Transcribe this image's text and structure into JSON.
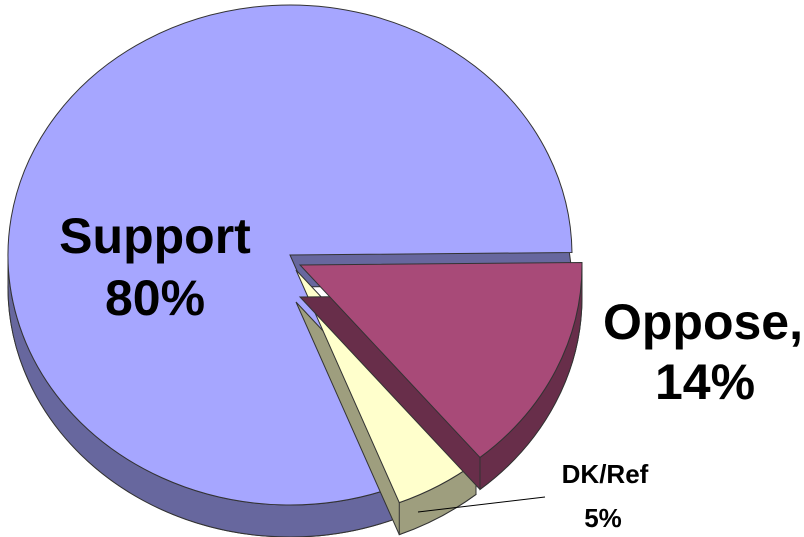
{
  "chart_data": {
    "type": "pie",
    "categories": [
      "Support",
      "Oppose,",
      "DK/Ref"
    ],
    "values": [
      80,
      14,
      5
    ],
    "value_labels": [
      "80%",
      "14%",
      "5%"
    ],
    "colors": [
      "#a6a6ff",
      "#a84a78",
      "#ffffcc"
    ]
  }
}
